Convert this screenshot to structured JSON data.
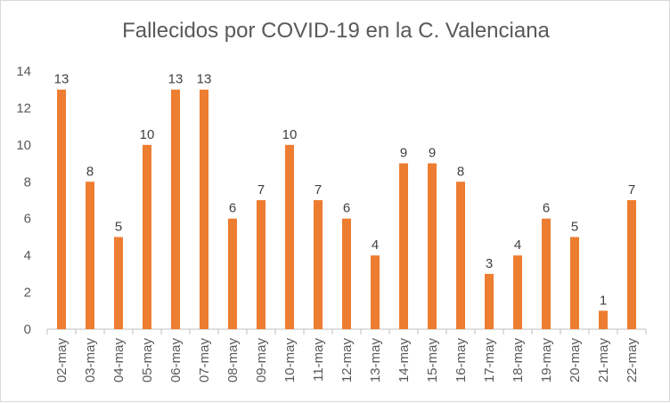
{
  "chart_data": {
    "type": "bar",
    "title": "Fallecidos por COVID-19 en la C. Valenciana",
    "xlabel": "",
    "ylabel": "",
    "categories": [
      "02-may",
      "03-may",
      "04-may",
      "05-may",
      "06-may",
      "07-may",
      "08-may",
      "09-may",
      "10-may",
      "11-may",
      "12-may",
      "13-may",
      "14-may",
      "15-may",
      "16-may",
      "17-may",
      "18-may",
      "19-may",
      "20-may",
      "21-may",
      "22-may"
    ],
    "values": [
      13,
      8,
      5,
      10,
      13,
      13,
      6,
      7,
      10,
      7,
      6,
      4,
      9,
      9,
      8,
      3,
      4,
      6,
      5,
      1,
      7
    ],
    "ylim": [
      0,
      14
    ],
    "yticks": [
      0,
      2,
      4,
      6,
      8,
      10,
      12,
      14
    ],
    "grid": false,
    "data_labels": true,
    "legend": "none",
    "colors": {
      "bar": "#ed7d31",
      "axis": "#bfbfbf",
      "text": "#595959"
    }
  }
}
